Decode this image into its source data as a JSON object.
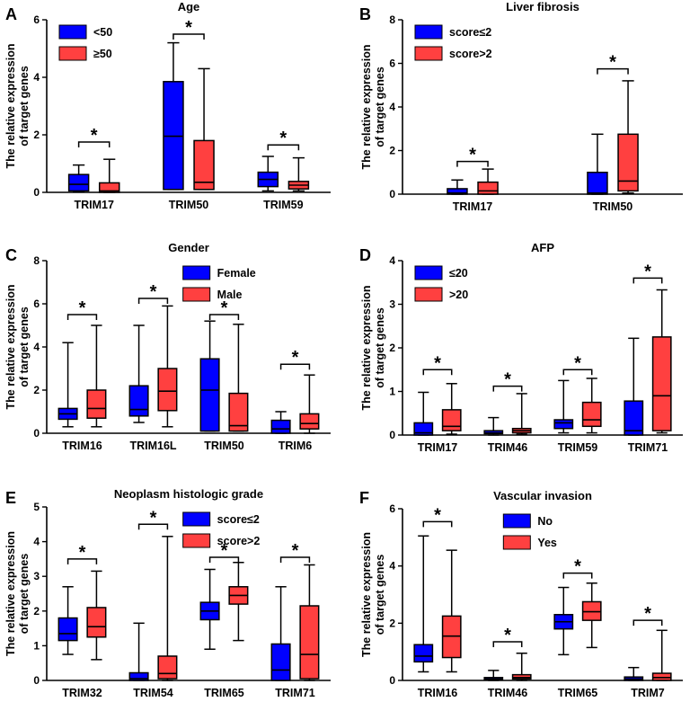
{
  "colors": {
    "low": "#0000ff",
    "high": "#ff4040",
    "axis": "#000000"
  },
  "chart_data": [
    {
      "type": "box",
      "letter": "A",
      "title": "Age",
      "ylabel_1": "The relative expression",
      "ylabel_2": "of target genes",
      "ylim": [
        0,
        6
      ],
      "yticks": [
        0,
        2,
        4,
        6
      ],
      "legend": [
        "<50",
        "≥50"
      ],
      "legend_pos": "top-left",
      "categories": [
        {
          "label": "TRIM17",
          "boxes": [
            {
              "min": 0.03,
              "q1": 0.05,
              "median": 0.28,
              "q3": 0.62,
              "max": 0.95
            },
            {
              "min": 0.0,
              "q1": 0.0,
              "median": 0.05,
              "q3": 0.33,
              "max": 1.15
            }
          ],
          "star": "*",
          "star_y": 1.75
        },
        {
          "label": "TRIM50",
          "boxes": [
            {
              "min": 0.1,
              "q1": 0.1,
              "median": 1.95,
              "q3": 3.85,
              "max": 5.2
            },
            {
              "min": 0.1,
              "q1": 0.1,
              "median": 0.35,
              "q3": 1.8,
              "max": 4.3
            }
          ],
          "star": "*",
          "star_y": 5.5
        },
        {
          "label": "TRIM59",
          "boxes": [
            {
              "min": 0.05,
              "q1": 0.2,
              "median": 0.45,
              "q3": 0.7,
              "max": 1.25
            },
            {
              "min": 0.05,
              "q1": 0.12,
              "median": 0.25,
              "q3": 0.38,
              "max": 1.2
            }
          ],
          "star": "*",
          "star_y": 1.65
        }
      ]
    },
    {
      "type": "box",
      "letter": "B",
      "title": "Liver fibrosis",
      "ylabel_1": "The relative expression",
      "ylabel_2": "of target genes",
      "ylim": [
        0,
        8
      ],
      "yticks": [
        0,
        2,
        4,
        6,
        8
      ],
      "legend": [
        "score≤2",
        "score>2"
      ],
      "legend_pos": "top-left",
      "categories": [
        {
          "label": "TRIM17",
          "boxes": [
            {
              "min": 0.0,
              "q1": 0.0,
              "median": 0.05,
              "q3": 0.25,
              "max": 0.65
            },
            {
              "min": 0.0,
              "q1": 0.0,
              "median": 0.15,
              "q3": 0.55,
              "max": 1.15
            }
          ],
          "star": "*",
          "star_y": 1.5
        },
        {
          "label": "TRIM50",
          "boxes": [
            {
              "min": 0.0,
              "q1": 0.0,
              "median": 0.05,
              "q3": 1.0,
              "max": 2.75
            },
            {
              "min": 0.05,
              "q1": 0.15,
              "median": 0.6,
              "q3": 2.75,
              "max": 5.2
            }
          ],
          "star": "*",
          "star_y": 5.75
        }
      ]
    },
    {
      "type": "box",
      "letter": "C",
      "title": "Gender",
      "ylabel_1": "The relative expression",
      "ylabel_2": "of target genes",
      "ylim": [
        0,
        8
      ],
      "yticks": [
        0,
        2,
        4,
        6,
        8
      ],
      "legend": [
        "Female",
        "Male"
      ],
      "legend_pos": "top-right",
      "categories": [
        {
          "label": "TRIM16",
          "boxes": [
            {
              "min": 0.3,
              "q1": 0.65,
              "median": 0.9,
              "q3": 1.15,
              "max": 4.2
            },
            {
              "min": 0.3,
              "q1": 0.7,
              "median": 1.15,
              "q3": 2.0,
              "max": 5.0
            }
          ],
          "star": "*",
          "star_y": 5.5
        },
        {
          "label": "TRIM16L",
          "boxes": [
            {
              "min": 0.5,
              "q1": 0.8,
              "median": 1.1,
              "q3": 2.2,
              "max": 5.0
            },
            {
              "min": 0.3,
              "q1": 1.05,
              "median": 1.95,
              "q3": 3.0,
              "max": 5.9
            }
          ],
          "star": "*",
          "star_y": 6.25
        },
        {
          "label": "TRIM50",
          "boxes": [
            {
              "min": 0.1,
              "q1": 0.1,
              "median": 2.0,
              "q3": 3.45,
              "max": 5.2
            },
            {
              "min": 0.1,
              "q1": 0.1,
              "median": 0.35,
              "q3": 1.85,
              "max": 5.05
            }
          ],
          "star": "*",
          "star_y": 5.5
        },
        {
          "label": "TRIM6",
          "boxes": [
            {
              "min": 0.0,
              "q1": 0.0,
              "median": 0.2,
              "q3": 0.6,
              "max": 1.0
            },
            {
              "min": 0.0,
              "q1": 0.2,
              "median": 0.45,
              "q3": 0.9,
              "max": 2.7
            }
          ],
          "star": "*",
          "star_y": 3.2
        }
      ]
    },
    {
      "type": "box",
      "letter": "D",
      "title": "AFP",
      "ylabel_1": "The relative expression",
      "ylabel_2": "of target genes",
      "ylim": [
        0,
        4
      ],
      "yticks": [
        0,
        1,
        2,
        3,
        4
      ],
      "legend": [
        "≤20",
        ">20"
      ],
      "legend_pos": "top-left",
      "categories": [
        {
          "label": "TRIM17",
          "boxes": [
            {
              "min": 0.0,
              "q1": 0.0,
              "median": 0.05,
              "q3": 0.28,
              "max": 0.98
            },
            {
              "min": 0.02,
              "q1": 0.1,
              "median": 0.2,
              "q3": 0.58,
              "max": 1.18
            }
          ],
          "star": "*",
          "star_y": 1.5
        },
        {
          "label": "TRIM46",
          "boxes": [
            {
              "min": 0.0,
              "q1": 0.03,
              "median": 0.05,
              "q3": 0.1,
              "max": 0.4
            },
            {
              "min": 0.02,
              "q1": 0.05,
              "median": 0.1,
              "q3": 0.15,
              "max": 0.95
            }
          ],
          "star": "*",
          "star_y": 1.12
        },
        {
          "label": "TRIM59",
          "boxes": [
            {
              "min": 0.05,
              "q1": 0.15,
              "median": 0.28,
              "q3": 0.35,
              "max": 1.25
            },
            {
              "min": 0.05,
              "q1": 0.2,
              "median": 0.35,
              "q3": 0.75,
              "max": 1.3
            }
          ],
          "star": "*",
          "star_y": 1.5
        },
        {
          "label": "TRIM71",
          "boxes": [
            {
              "min": 0.0,
              "q1": 0.0,
              "median": 0.1,
              "q3": 0.78,
              "max": 2.22
            },
            {
              "min": 0.05,
              "q1": 0.1,
              "median": 0.9,
              "q3": 2.25,
              "max": 3.33
            }
          ],
          "star": "*",
          "star_y": 3.6
        }
      ]
    },
    {
      "type": "box",
      "letter": "E",
      "title": "Neoplasm histologic grade",
      "ylabel_1": "The relative expression",
      "ylabel_2": "of target genes",
      "ylim": [
        0,
        5
      ],
      "yticks": [
        0,
        1,
        2,
        3,
        4,
        5
      ],
      "legend": [
        "score≤2",
        "score>2"
      ],
      "legend_pos": "top-right",
      "categories": [
        {
          "label": "TRIM32",
          "boxes": [
            {
              "min": 0.75,
              "q1": 1.15,
              "median": 1.35,
              "q3": 1.8,
              "max": 2.7
            },
            {
              "min": 0.6,
              "q1": 1.25,
              "median": 1.55,
              "q3": 2.1,
              "max": 3.15
            }
          ],
          "star": "*",
          "star_y": 3.5
        },
        {
          "label": "TRIM54",
          "boxes": [
            {
              "min": 0.0,
              "q1": 0.0,
              "median": 0.05,
              "q3": 0.22,
              "max": 1.65
            },
            {
              "min": 0.0,
              "q1": 0.05,
              "median": 0.2,
              "q3": 0.7,
              "max": 4.15
            }
          ],
          "star": "*",
          "star_y": 4.5
        },
        {
          "label": "TRIM65",
          "boxes": [
            {
              "min": 0.9,
              "q1": 1.75,
              "median": 2.0,
              "q3": 2.25,
              "max": 3.2
            },
            {
              "min": 1.15,
              "q1": 2.2,
              "median": 2.45,
              "q3": 2.7,
              "max": 3.4
            }
          ],
          "star": "*",
          "star_y": 3.55
        },
        {
          "label": "TRIM71",
          "boxes": [
            {
              "min": 0.0,
              "q1": 0.0,
              "median": 0.3,
              "q3": 1.05,
              "max": 2.7
            },
            {
              "min": 0.0,
              "q1": 0.05,
              "median": 0.75,
              "q3": 2.15,
              "max": 3.33
            }
          ],
          "star": "*",
          "star_y": 3.55
        }
      ]
    },
    {
      "type": "box",
      "letter": "F",
      "title": "Vascular invasion",
      "ylabel_1": "The relative expression",
      "ylabel_2": "of target genes",
      "ylim": [
        0,
        6
      ],
      "yticks": [
        0,
        2,
        4,
        6
      ],
      "legend": [
        "No",
        "Yes"
      ],
      "legend_pos": "top-center",
      "categories": [
        {
          "label": "TRIM16",
          "boxes": [
            {
              "min": 0.3,
              "q1": 0.65,
              "median": 0.85,
              "q3": 1.25,
              "max": 5.05
            },
            {
              "min": 0.3,
              "q1": 0.8,
              "median": 1.55,
              "q3": 2.25,
              "max": 4.55
            }
          ],
          "star": "*",
          "star_y": 5.55
        },
        {
          "label": "TRIM46",
          "boxes": [
            {
              "min": 0.0,
              "q1": 0.02,
              "median": 0.05,
              "q3": 0.1,
              "max": 0.35
            },
            {
              "min": 0.0,
              "q1": 0.05,
              "median": 0.1,
              "q3": 0.2,
              "max": 0.95
            }
          ],
          "star": "*",
          "star_y": 1.35
        },
        {
          "label": "TRIM65",
          "boxes": [
            {
              "min": 0.9,
              "q1": 1.8,
              "median": 2.05,
              "q3": 2.3,
              "max": 3.25
            },
            {
              "min": 1.15,
              "q1": 2.1,
              "median": 2.4,
              "q3": 2.75,
              "max": 3.4
            }
          ],
          "star": "*",
          "star_y": 3.75
        },
        {
          "label": "TRIM7",
          "boxes": [
            {
              "min": 0.0,
              "q1": 0.0,
              "median": 0.05,
              "q3": 0.12,
              "max": 0.45
            },
            {
              "min": 0.0,
              "q1": 0.0,
              "median": 0.1,
              "q3": 0.25,
              "max": 1.75
            }
          ],
          "star": "*",
          "star_y": 2.1
        }
      ]
    }
  ]
}
